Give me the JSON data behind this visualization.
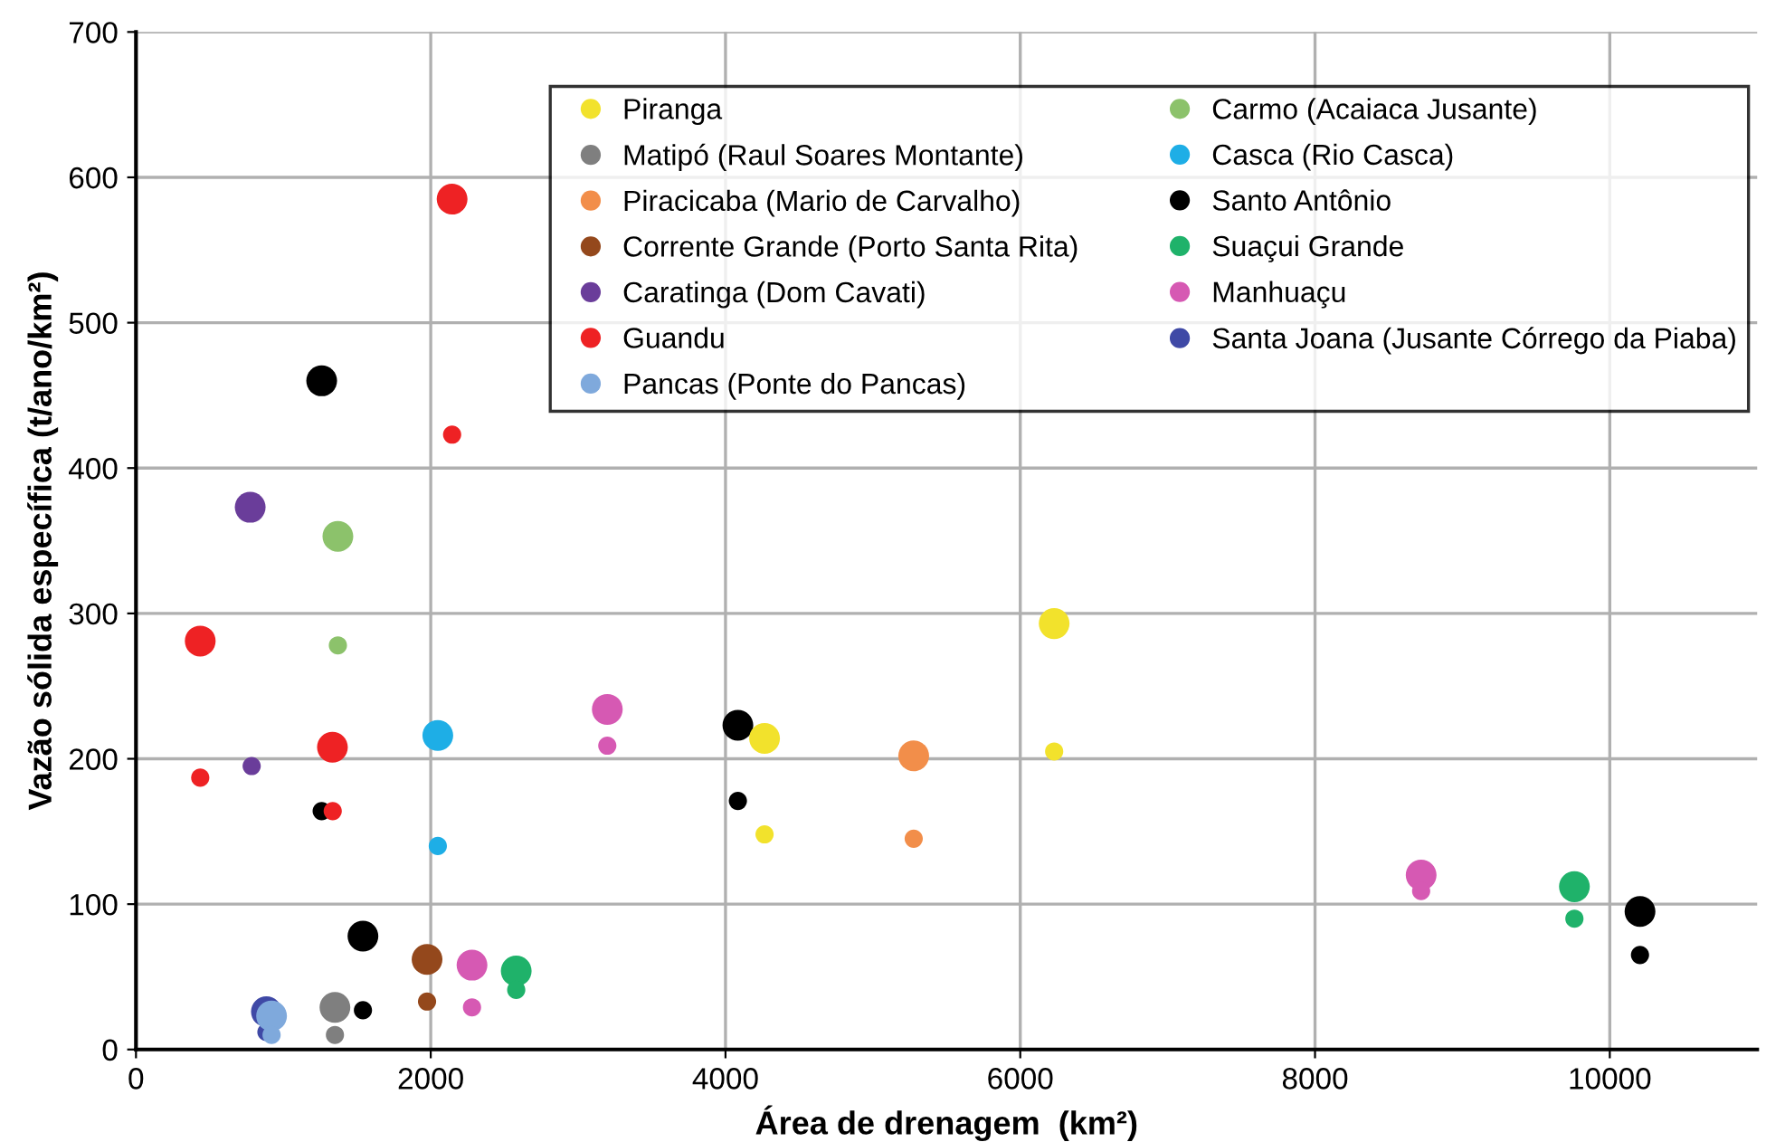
{
  "chart_data": {
    "type": "bubble",
    "xlabel": "Área de drenagem  (km²)",
    "ylabel": "Vazão sólida específica (t/ano/km²)",
    "xlim": [
      0,
      11000
    ],
    "xticks": [
      0,
      2000,
      4000,
      6000,
      8000,
      10000
    ],
    "ylim": [
      0,
      700
    ],
    "yticks": [
      0,
      100,
      200,
      300,
      400,
      500,
      600,
      700
    ],
    "grid": true,
    "legend": "top right",
    "marker": "circle",
    "series": [
      {
        "name": "Piranga",
        "color": "#f2e22c",
        "x": [
          6230,
          6230,
          4265,
          4265
        ],
        "values": [
          293,
          205,
          214,
          148
        ],
        "sizes": [
          1,
          0.35,
          1,
          0.35
        ]
      },
      {
        "name": "Matipó (Raul Soares Montante)",
        "color": "#7f7f7f",
        "x": [
          1350,
          1350
        ],
        "values": [
          29,
          10
        ],
        "sizes": [
          1,
          0.35
        ]
      },
      {
        "name": "Piracicaba (Mario de Carvalho)",
        "color": "#f28e4a",
        "x": [
          5277,
          5277
        ],
        "values": [
          202,
          145
        ],
        "sizes": [
          1,
          0.35
        ]
      },
      {
        "name": "Corrente Grande (Porto Santa Rita)",
        "color": "#94481c",
        "x": [
          1975,
          1975
        ],
        "values": [
          62,
          33
        ],
        "sizes": [
          1,
          0.35
        ]
      },
      {
        "name": "Caratinga (Dom Cavati)",
        "color": "#6a3d9a",
        "x": [
          775,
          785
        ],
        "values": [
          373,
          195
        ],
        "sizes": [
          1,
          0.35
        ]
      },
      {
        "name": "Guandu",
        "color": "#ee2224",
        "x": [
          2145,
          2145,
          436,
          436,
          1333,
          1335
        ],
        "values": [
          585,
          423,
          281,
          187,
          208,
          164
        ],
        "sizes": [
          1,
          0.35,
          1,
          0.35,
          1,
          0.35
        ]
      },
      {
        "name": "Pancas (Ponte do Pancas)",
        "color": "#7fa9dc",
        "x": [
          920,
          920
        ],
        "values": [
          23,
          10
        ],
        "sizes": [
          1,
          0.35
        ]
      },
      {
        "name": "Carmo (Acaiaca Jusante)",
        "color": "#8cc26b",
        "x": [
          1370,
          1370
        ],
        "values": [
          353,
          278
        ],
        "sizes": [
          1,
          0.35
        ]
      },
      {
        "name": "Casca (Rio Casca)",
        "color": "#1eaee6",
        "x": [
          2048,
          2048
        ],
        "values": [
          216,
          140
        ],
        "sizes": [
          1,
          0.35
        ]
      },
      {
        "name": "Santo Antônio",
        "color": "#000000",
        "x": [
          1260,
          1260,
          4084,
          4084,
          1540,
          1540,
          10205,
          10205
        ],
        "values": [
          460,
          164,
          223,
          171,
          78,
          27,
          95,
          65
        ],
        "sizes": [
          1,
          0.35,
          1,
          0.35,
          1,
          0.35,
          1,
          0.35
        ]
      },
      {
        "name": "Suaçui Grande",
        "color": "#1fb26a",
        "x": [
          2580,
          2580,
          9760,
          9760
        ],
        "values": [
          54,
          41,
          112,
          90
        ],
        "sizes": [
          1,
          0.35,
          1,
          0.35
        ]
      },
      {
        "name": "Manhuaçu",
        "color": "#d659b3",
        "x": [
          3198,
          3198,
          2280,
          2280,
          8720,
          8720
        ],
        "values": [
          234,
          209,
          58,
          29,
          120,
          109
        ],
        "sizes": [
          1,
          0.35,
          1,
          0.35,
          1,
          0.35
        ]
      },
      {
        "name": "Santa Joana (Jusante Córrego da Piaba)",
        "color": "#3f49a6",
        "x": [
          885,
          885
        ],
        "values": [
          26,
          12
        ],
        "sizes": [
          1,
          0.35
        ]
      }
    ]
  }
}
